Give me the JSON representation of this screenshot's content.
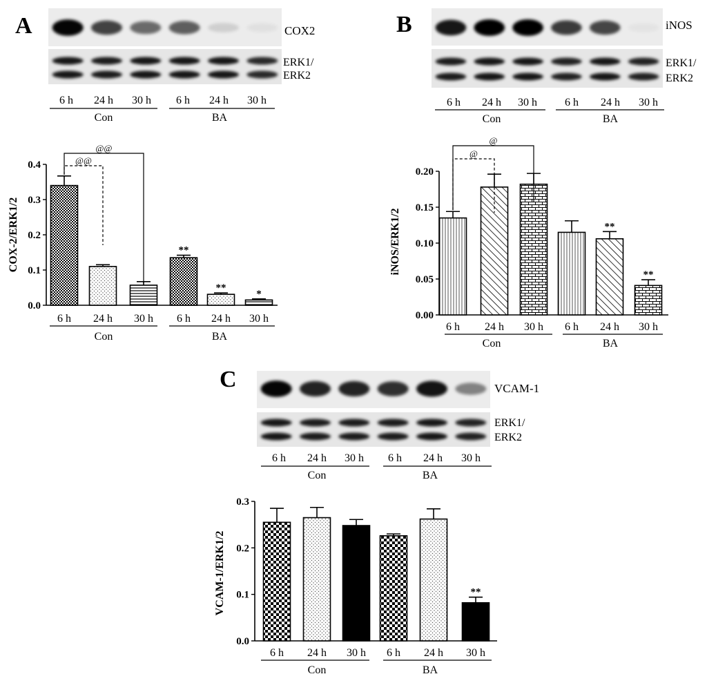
{
  "panels": [
    {
      "letter": "A",
      "blot": {
        "target_label": "COX2",
        "loading_label_1": "ERK1/",
        "loading_label_2": "ERK2",
        "target_intensity": [
          0.98,
          0.72,
          0.55,
          0.6,
          0.12,
          0.05
        ],
        "loading_intensity": [
          0.9,
          0.88,
          0.9,
          0.9,
          0.9,
          0.82
        ]
      },
      "lanes": [
        "6 h",
        "24 h",
        "30 h",
        "6 h",
        "24 h",
        "30 h"
      ],
      "groups": [
        "Con",
        "BA"
      ],
      "chart_data": {
        "type": "bar",
        "ylabel": "COX-2/ERK1/2",
        "ylim": [
          0,
          0.4
        ],
        "yticks": [
          "0.0",
          "0.1",
          "0.2",
          "0.3",
          "0.4"
        ],
        "categories": [
          "6 h",
          "24 h",
          "30 h",
          "6 h",
          "24 h",
          "30 h"
        ],
        "groups": [
          "Con",
          "BA"
        ],
        "values": [
          0.34,
          0.11,
          0.057,
          0.135,
          0.031,
          0.015
        ],
        "errors": [
          0.027,
          0.005,
          0.01,
          0.007,
          0.004,
          0.003
        ],
        "fills": [
          "checker-dense",
          "dots",
          "hlines",
          "checker-dense",
          "dots",
          "hlines"
        ],
        "significance": [
          "",
          "",
          "",
          "**",
          "**",
          "*"
        ],
        "brackets": [
          {
            "label": "@@",
            "from": 0,
            "to": 1,
            "style": "dashed"
          },
          {
            "label": "@@",
            "from": 0,
            "to": 2,
            "style": "solid"
          }
        ]
      }
    },
    {
      "letter": "B",
      "blot": {
        "target_label": "iNOS",
        "loading_label_1": "ERK1/",
        "loading_label_2": "ERK2",
        "target_intensity": [
          0.9,
          1.0,
          1.0,
          0.75,
          0.7,
          0.02
        ],
        "loading_intensity": [
          0.88,
          0.9,
          0.9,
          0.85,
          0.9,
          0.85
        ]
      },
      "lanes": [
        "6 h",
        "24 h",
        "30 h",
        "6 h",
        "24 h",
        "30 h"
      ],
      "groups": [
        "Con",
        "BA"
      ],
      "chart_data": {
        "type": "bar",
        "ylabel": "iNOS/ERK1/2",
        "ylim": [
          0,
          0.2
        ],
        "yticks": [
          "0.00",
          "0.05",
          "0.10",
          "0.15",
          "0.20"
        ],
        "categories": [
          "6 h",
          "24 h",
          "30 h",
          "6 h",
          "24 h",
          "30 h"
        ],
        "groups": [
          "Con",
          "BA"
        ],
        "values": [
          0.135,
          0.178,
          0.182,
          0.115,
          0.106,
          0.041
        ],
        "errors": [
          0.009,
          0.018,
          0.015,
          0.016,
          0.01,
          0.008
        ],
        "fills": [
          "vlines",
          "diag",
          "brick",
          "vlines",
          "diag",
          "brick"
        ],
        "significance": [
          "",
          "",
          "",
          "",
          "**",
          "**"
        ],
        "brackets": [
          {
            "label": "@",
            "from": 0,
            "to": 1,
            "style": "dashed"
          },
          {
            "label": "@",
            "from": 0,
            "to": 2,
            "style": "solid"
          }
        ]
      }
    },
    {
      "letter": "C",
      "blot": {
        "target_label": "VCAM-1",
        "loading_label_1": "ERK1/",
        "loading_label_2": "ERK2",
        "target_intensity": [
          0.98,
          0.85,
          0.85,
          0.8,
          0.92,
          0.45
        ],
        "loading_intensity": [
          0.9,
          0.88,
          0.88,
          0.88,
          0.9,
          0.85
        ]
      },
      "lanes": [
        "6 h",
        "24 h",
        "30 h",
        "6 h",
        "24 h",
        "30 h"
      ],
      "groups": [
        "Con",
        "BA"
      ],
      "chart_data": {
        "type": "bar",
        "ylabel": "VCAM-1/ERK1/2",
        "ylim": [
          0,
          0.3
        ],
        "yticks": [
          "0.0",
          "0.1",
          "0.2",
          "0.3"
        ],
        "categories": [
          "6 h",
          "24 h",
          "30 h",
          "6 h",
          "24 h",
          "30 h"
        ],
        "groups": [
          "Con",
          "BA"
        ],
        "values": [
          0.255,
          0.265,
          0.248,
          0.226,
          0.262,
          0.082
        ],
        "errors": [
          0.03,
          0.022,
          0.013,
          0.004,
          0.022,
          0.012
        ],
        "fills": [
          "checker",
          "dots",
          "solid",
          "checker",
          "dots",
          "solid"
        ],
        "significance": [
          "",
          "",
          "",
          "",
          "",
          "**"
        ],
        "brackets": []
      }
    }
  ]
}
